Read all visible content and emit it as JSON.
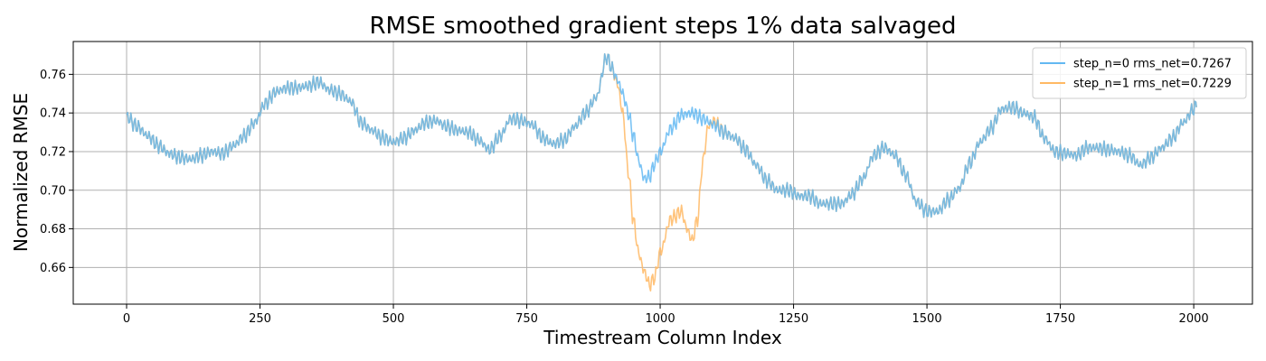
{
  "chart_data": {
    "type": "line",
    "title": "RMSE smoothed gradient steps 1% data salvaged",
    "xlabel": "Timestream Column Index",
    "ylabel": "Normalized RMSE",
    "xlim": [
      -100,
      2110
    ],
    "ylim": [
      0.641,
      0.777
    ],
    "xticks": [
      0,
      250,
      500,
      750,
      1000,
      1250,
      1500,
      1750,
      2000
    ],
    "xtick_labels": [
      "0",
      "250",
      "500",
      "750",
      "1000",
      "1250",
      "1500",
      "1750",
      "2000"
    ],
    "yticks": [
      0.66,
      0.68,
      0.7,
      0.72,
      0.74,
      0.76
    ],
    "ytick_labels": [
      "0.66",
      "0.68",
      "0.70",
      "0.72",
      "0.74",
      "0.76"
    ],
    "grid": true,
    "legend_position": "top-right",
    "series": [
      {
        "name": "step_n=0 rms_net=0.7267",
        "color": "#63b8f2",
        "x": [
          0,
          20,
          40,
          60,
          80,
          100,
          120,
          140,
          160,
          180,
          200,
          220,
          240,
          260,
          280,
          300,
          320,
          340,
          360,
          380,
          400,
          420,
          440,
          460,
          480,
          500,
          520,
          540,
          560,
          580,
          600,
          620,
          640,
          660,
          680,
          700,
          720,
          740,
          760,
          780,
          800,
          820,
          840,
          860,
          880,
          900,
          910,
          920,
          930,
          940,
          950,
          960,
          970,
          980,
          990,
          1000,
          1020,
          1040,
          1060,
          1080,
          1100,
          1120,
          1140,
          1160,
          1180,
          1200,
          1220,
          1240,
          1260,
          1280,
          1300,
          1320,
          1340,
          1360,
          1380,
          1400,
          1420,
          1440,
          1460,
          1480,
          1500,
          1520,
          1540,
          1560,
          1580,
          1600,
          1620,
          1640,
          1660,
          1680,
          1700,
          1720,
          1740,
          1760,
          1780,
          1800,
          1820,
          1840,
          1860,
          1880,
          1900,
          1920,
          1940,
          1960,
          1980,
          2000,
          2005
        ],
        "y": [
          0.738,
          0.733,
          0.728,
          0.723,
          0.719,
          0.717,
          0.716,
          0.718,
          0.72,
          0.719,
          0.723,
          0.728,
          0.735,
          0.745,
          0.751,
          0.753,
          0.753,
          0.754,
          0.756,
          0.752,
          0.75,
          0.746,
          0.735,
          0.731,
          0.727,
          0.725,
          0.727,
          0.731,
          0.735,
          0.736,
          0.733,
          0.731,
          0.73,
          0.726,
          0.721,
          0.728,
          0.737,
          0.736,
          0.734,
          0.727,
          0.724,
          0.726,
          0.733,
          0.74,
          0.748,
          0.769,
          0.763,
          0.757,
          0.75,
          0.74,
          0.728,
          0.715,
          0.706,
          0.707,
          0.714,
          0.72,
          0.732,
          0.739,
          0.74,
          0.737,
          0.734,
          0.73,
          0.727,
          0.721,
          0.713,
          0.705,
          0.7,
          0.7,
          0.697,
          0.697,
          0.693,
          0.693,
          0.693,
          0.698,
          0.706,
          0.718,
          0.722,
          0.718,
          0.708,
          0.694,
          0.689,
          0.689,
          0.695,
          0.701,
          0.714,
          0.725,
          0.732,
          0.742,
          0.743,
          0.74,
          0.738,
          0.727,
          0.72,
          0.719,
          0.718,
          0.722,
          0.722,
          0.721,
          0.72,
          0.718,
          0.713,
          0.717,
          0.722,
          0.727,
          0.735,
          0.742,
          0.744
        ]
      },
      {
        "name": "step_n=1 rms_net=0.7229",
        "color": "#ffb964",
        "x": [
          0,
          20,
          40,
          60,
          80,
          100,
          120,
          140,
          160,
          180,
          200,
          220,
          240,
          260,
          280,
          300,
          320,
          340,
          360,
          380,
          400,
          420,
          440,
          460,
          480,
          500,
          520,
          540,
          560,
          580,
          600,
          620,
          640,
          660,
          680,
          700,
          720,
          740,
          760,
          780,
          800,
          820,
          840,
          860,
          880,
          900,
          910,
          920,
          930,
          940,
          950,
          960,
          970,
          980,
          990,
          1000,
          1020,
          1040,
          1050,
          1060,
          1070,
          1080,
          1090,
          1100,
          1120,
          1140,
          1160,
          1180,
          1200,
          1220,
          1240,
          1260,
          1280,
          1300,
          1320,
          1340,
          1360,
          1380,
          1400,
          1420,
          1440,
          1460,
          1480,
          1500,
          1520,
          1540,
          1560,
          1580,
          1600,
          1620,
          1640,
          1660,
          1680,
          1700,
          1720,
          1740,
          1760,
          1780,
          1800,
          1820,
          1840,
          1860,
          1880,
          1900,
          1920,
          1940,
          1960,
          1980,
          2000,
          2005
        ],
        "y": [
          0.738,
          0.733,
          0.728,
          0.723,
          0.719,
          0.717,
          0.716,
          0.718,
          0.72,
          0.719,
          0.723,
          0.728,
          0.735,
          0.745,
          0.751,
          0.753,
          0.753,
          0.754,
          0.756,
          0.752,
          0.75,
          0.746,
          0.735,
          0.731,
          0.727,
          0.725,
          0.727,
          0.731,
          0.735,
          0.736,
          0.733,
          0.731,
          0.73,
          0.726,
          0.721,
          0.728,
          0.737,
          0.736,
          0.734,
          0.727,
          0.724,
          0.726,
          0.733,
          0.74,
          0.748,
          0.769,
          0.763,
          0.755,
          0.74,
          0.71,
          0.684,
          0.667,
          0.658,
          0.651,
          0.655,
          0.668,
          0.685,
          0.689,
          0.68,
          0.674,
          0.685,
          0.715,
          0.733,
          0.736,
          0.73,
          0.727,
          0.721,
          0.713,
          0.705,
          0.7,
          0.7,
          0.697,
          0.697,
          0.693,
          0.693,
          0.693,
          0.698,
          0.706,
          0.718,
          0.722,
          0.718,
          0.708,
          0.694,
          0.689,
          0.689,
          0.695,
          0.701,
          0.714,
          0.725,
          0.732,
          0.742,
          0.743,
          0.74,
          0.738,
          0.727,
          0.72,
          0.719,
          0.718,
          0.722,
          0.722,
          0.721,
          0.72,
          0.718,
          0.713,
          0.717,
          0.722,
          0.727,
          0.735,
          0.742,
          0.744
        ]
      }
    ]
  }
}
